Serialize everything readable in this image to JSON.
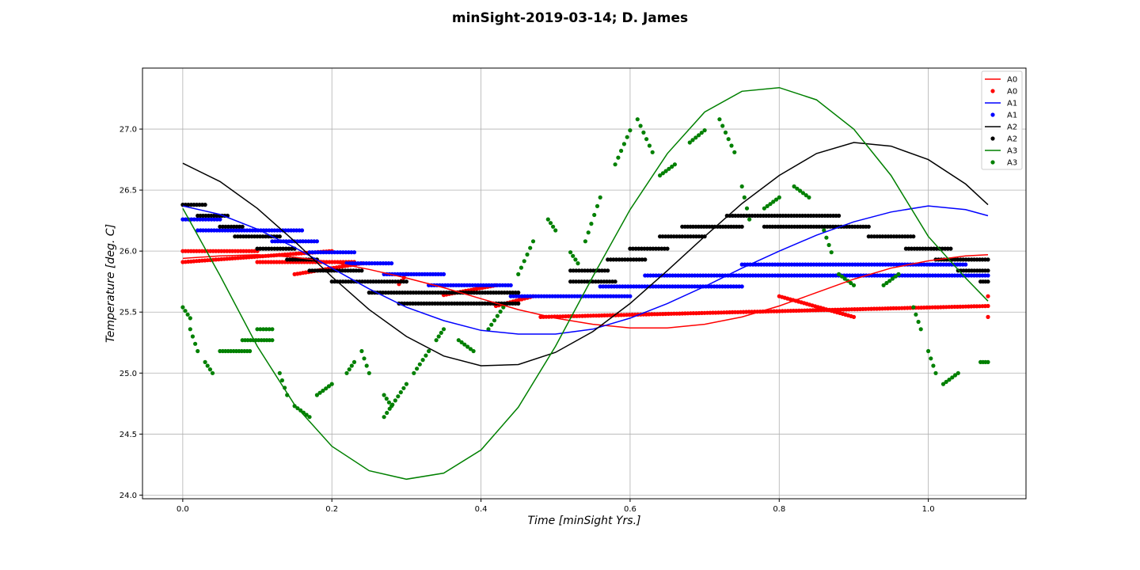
{
  "chart_data": {
    "type": "scatter",
    "title": "minSight-2019-03-14; D. James",
    "xlabel": "Time [minSight Yrs.]",
    "ylabel": "Temperature [deg. C]",
    "xlim": [
      -0.054,
      1.131
    ],
    "ylim": [
      23.97,
      27.5
    ],
    "xticks": [
      "0.0",
      "0.2",
      "0.4",
      "0.6",
      "0.8",
      "1.0"
    ],
    "xtick_values": [
      0.0,
      0.2,
      0.4,
      0.6,
      0.8,
      1.0
    ],
    "yticks": [
      "24.0",
      "24.5",
      "25.0",
      "25.5",
      "26.0",
      "26.5",
      "27.0"
    ],
    "ytick_values": [
      24.0,
      24.5,
      25.0,
      25.5,
      26.0,
      26.5,
      27.0
    ],
    "grid": true,
    "legend_position": "top-right",
    "legend_entries": [
      "A0",
      "A0",
      "A1",
      "A1",
      "A2",
      "A2",
      "A3",
      "A3"
    ],
    "series": [
      {
        "name": "A0",
        "color": "#ff0000",
        "fit": [
          [
            0.0,
            25.94
          ],
          [
            0.05,
            25.96
          ],
          [
            0.1,
            25.97
          ],
          [
            0.15,
            25.95
          ],
          [
            0.2,
            25.91
          ],
          [
            0.25,
            25.85
          ],
          [
            0.3,
            25.78
          ],
          [
            0.35,
            25.7
          ],
          [
            0.4,
            25.61
          ],
          [
            0.45,
            25.52
          ],
          [
            0.5,
            25.45
          ],
          [
            0.55,
            25.4
          ],
          [
            0.6,
            25.37
          ],
          [
            0.65,
            25.37
          ],
          [
            0.7,
            25.4
          ],
          [
            0.75,
            25.46
          ],
          [
            0.8,
            25.55
          ],
          [
            0.85,
            25.66
          ],
          [
            0.9,
            25.77
          ],
          [
            0.95,
            25.86
          ],
          [
            1.0,
            25.92
          ],
          [
            1.05,
            25.96
          ],
          [
            1.08,
            25.97
          ]
        ],
        "points": [
          [
            0.0,
            26.0
          ],
          [
            0.1,
            26.0
          ],
          [
            0.2,
            26.0
          ],
          [
            0.0,
            25.91
          ],
          [
            0.1,
            25.91
          ],
          [
            0.23,
            25.91
          ],
          [
            0.24,
            25.9
          ],
          [
            0.15,
            25.81
          ],
          [
            0.3,
            25.81
          ],
          [
            0.29,
            25.73
          ],
          [
            0.42,
            25.72
          ],
          [
            0.35,
            25.64
          ],
          [
            0.47,
            25.63
          ],
          [
            0.42,
            25.55
          ],
          [
            1.08,
            25.55
          ],
          [
            0.48,
            25.46
          ],
          [
            0.9,
            25.46
          ],
          [
            0.8,
            25.63
          ],
          [
            1.08,
            25.63
          ],
          [
            1.08,
            25.46
          ]
        ]
      },
      {
        "name": "A1",
        "color": "#0000ff",
        "fit": [
          [
            0.0,
            26.37
          ],
          [
            0.05,
            26.3
          ],
          [
            0.1,
            26.18
          ],
          [
            0.15,
            26.03
          ],
          [
            0.2,
            25.86
          ],
          [
            0.25,
            25.69
          ],
          [
            0.3,
            25.54
          ],
          [
            0.35,
            25.43
          ],
          [
            0.4,
            25.35
          ],
          [
            0.45,
            25.32
          ],
          [
            0.5,
            25.32
          ],
          [
            0.55,
            25.36
          ],
          [
            0.6,
            25.45
          ],
          [
            0.65,
            25.57
          ],
          [
            0.7,
            25.71
          ],
          [
            0.75,
            25.86
          ],
          [
            0.8,
            26.0
          ],
          [
            0.85,
            26.13
          ],
          [
            0.9,
            26.24
          ],
          [
            0.95,
            26.32
          ],
          [
            1.0,
            26.37
          ],
          [
            1.05,
            26.34
          ],
          [
            1.08,
            26.29
          ]
        ],
        "points": [
          [
            0.0,
            26.26
          ],
          [
            0.05,
            26.26
          ],
          [
            0.02,
            26.17
          ],
          [
            0.16,
            26.17
          ],
          [
            0.12,
            26.08
          ],
          [
            0.18,
            26.08
          ],
          [
            0.17,
            25.99
          ],
          [
            0.23,
            25.99
          ],
          [
            0.22,
            25.9
          ],
          [
            0.28,
            25.9
          ],
          [
            0.27,
            25.81
          ],
          [
            0.35,
            25.81
          ],
          [
            0.33,
            25.72
          ],
          [
            0.44,
            25.72
          ],
          [
            0.44,
            25.63
          ],
          [
            0.6,
            25.63
          ],
          [
            0.56,
            25.71
          ],
          [
            0.75,
            25.71
          ],
          [
            0.62,
            25.8
          ],
          [
            1.08,
            25.8
          ],
          [
            0.75,
            25.89
          ],
          [
            1.05,
            25.89
          ]
        ]
      },
      {
        "name": "A2",
        "color": "#000000",
        "fit": [
          [
            0.0,
            26.72
          ],
          [
            0.05,
            26.57
          ],
          [
            0.1,
            26.35
          ],
          [
            0.15,
            26.08
          ],
          [
            0.2,
            25.79
          ],
          [
            0.25,
            25.52
          ],
          [
            0.3,
            25.3
          ],
          [
            0.35,
            25.14
          ],
          [
            0.4,
            25.06
          ],
          [
            0.45,
            25.07
          ],
          [
            0.5,
            25.17
          ],
          [
            0.55,
            25.34
          ],
          [
            0.6,
            25.57
          ],
          [
            0.65,
            25.84
          ],
          [
            0.7,
            26.12
          ],
          [
            0.75,
            26.39
          ],
          [
            0.8,
            26.62
          ],
          [
            0.85,
            26.8
          ],
          [
            0.9,
            26.89
          ],
          [
            0.95,
            26.86
          ],
          [
            1.0,
            26.75
          ],
          [
            1.05,
            26.55
          ],
          [
            1.08,
            26.38
          ]
        ],
        "points": [
          [
            0.0,
            26.38
          ],
          [
            0.03,
            26.38
          ],
          [
            0.02,
            26.29
          ],
          [
            0.06,
            26.29
          ],
          [
            0.05,
            26.2
          ],
          [
            0.08,
            26.2
          ],
          [
            0.07,
            26.12
          ],
          [
            0.13,
            26.12
          ],
          [
            0.1,
            26.02
          ],
          [
            0.15,
            26.02
          ],
          [
            0.14,
            25.93
          ],
          [
            0.18,
            25.93
          ],
          [
            0.17,
            25.84
          ],
          [
            0.24,
            25.84
          ],
          [
            0.2,
            25.75
          ],
          [
            0.3,
            25.75
          ],
          [
            0.25,
            25.66
          ],
          [
            0.45,
            25.66
          ],
          [
            0.29,
            25.57
          ],
          [
            0.45,
            25.57
          ],
          [
            0.52,
            25.75
          ],
          [
            0.58,
            25.75
          ],
          [
            0.52,
            25.84
          ],
          [
            0.57,
            25.84
          ],
          [
            0.57,
            25.93
          ],
          [
            0.62,
            25.93
          ],
          [
            0.6,
            26.02
          ],
          [
            0.65,
            26.02
          ],
          [
            0.64,
            26.12
          ],
          [
            0.7,
            26.12
          ],
          [
            0.67,
            26.2
          ],
          [
            0.75,
            26.2
          ],
          [
            0.73,
            26.29
          ],
          [
            0.88,
            26.29
          ],
          [
            0.78,
            26.2
          ],
          [
            0.92,
            26.2
          ],
          [
            0.92,
            26.12
          ],
          [
            0.98,
            26.12
          ],
          [
            0.97,
            26.02
          ],
          [
            1.03,
            26.02
          ],
          [
            1.01,
            25.93
          ],
          [
            1.08,
            25.93
          ],
          [
            1.04,
            25.84
          ],
          [
            1.08,
            25.84
          ],
          [
            1.07,
            25.75
          ],
          [
            1.08,
            25.75
          ]
        ]
      },
      {
        "name": "A3",
        "color": "#008000",
        "fit": [
          [
            0.0,
            26.35
          ],
          [
            0.05,
            25.8
          ],
          [
            0.1,
            25.22
          ],
          [
            0.15,
            24.74
          ],
          [
            0.2,
            24.4
          ],
          [
            0.25,
            24.2
          ],
          [
            0.3,
            24.13
          ],
          [
            0.35,
            24.18
          ],
          [
            0.4,
            24.37
          ],
          [
            0.45,
            24.72
          ],
          [
            0.5,
            25.22
          ],
          [
            0.55,
            25.79
          ],
          [
            0.6,
            26.34
          ],
          [
            0.65,
            26.8
          ],
          [
            0.7,
            27.14
          ],
          [
            0.75,
            27.31
          ],
          [
            0.8,
            27.34
          ],
          [
            0.85,
            27.24
          ],
          [
            0.9,
            27.0
          ],
          [
            0.95,
            26.62
          ],
          [
            1.0,
            26.12
          ],
          [
            1.05,
            25.78
          ],
          [
            1.08,
            25.59
          ]
        ],
        "points": [
          [
            0.0,
            25.54
          ],
          [
            0.01,
            25.45
          ],
          [
            0.01,
            25.36
          ],
          [
            0.02,
            25.18
          ],
          [
            0.03,
            25.09
          ],
          [
            0.04,
            25.0
          ],
          [
            0.05,
            25.18
          ],
          [
            0.09,
            25.18
          ],
          [
            0.08,
            25.27
          ],
          [
            0.12,
            25.27
          ],
          [
            0.1,
            25.36
          ],
          [
            0.12,
            25.36
          ],
          [
            0.13,
            25.0
          ],
          [
            0.14,
            24.82
          ],
          [
            0.15,
            24.73
          ],
          [
            0.17,
            24.64
          ],
          [
            0.18,
            24.82
          ],
          [
            0.2,
            24.91
          ],
          [
            0.22,
            25.0
          ],
          [
            0.23,
            25.09
          ],
          [
            0.24,
            25.18
          ],
          [
            0.25,
            25.0
          ],
          [
            0.27,
            24.82
          ],
          [
            0.28,
            24.73
          ],
          [
            0.27,
            24.64
          ],
          [
            0.3,
            24.91
          ],
          [
            0.31,
            25.0
          ],
          [
            0.33,
            25.18
          ],
          [
            0.34,
            25.27
          ],
          [
            0.35,
            25.36
          ],
          [
            0.37,
            25.27
          ],
          [
            0.39,
            25.18
          ],
          [
            0.41,
            25.36
          ],
          [
            0.43,
            25.54
          ],
          [
            0.45,
            25.81
          ],
          [
            0.47,
            26.08
          ],
          [
            0.49,
            26.26
          ],
          [
            0.5,
            26.17
          ],
          [
            0.52,
            25.99
          ],
          [
            0.53,
            25.9
          ],
          [
            0.54,
            26.08
          ],
          [
            0.56,
            26.44
          ],
          [
            0.58,
            26.71
          ],
          [
            0.6,
            26.99
          ],
          [
            0.61,
            27.08
          ],
          [
            0.63,
            26.81
          ],
          [
            0.64,
            26.62
          ],
          [
            0.66,
            26.71
          ],
          [
            0.68,
            26.89
          ],
          [
            0.7,
            26.99
          ],
          [
            0.72,
            27.08
          ],
          [
            0.74,
            26.81
          ],
          [
            0.75,
            26.53
          ],
          [
            0.76,
            26.26
          ],
          [
            0.78,
            26.35
          ],
          [
            0.8,
            26.44
          ],
          [
            0.82,
            26.53
          ],
          [
            0.84,
            26.44
          ],
          [
            0.86,
            26.17
          ],
          [
            0.87,
            25.99
          ],
          [
            0.88,
            25.81
          ],
          [
            0.9,
            25.72
          ],
          [
            0.94,
            25.72
          ],
          [
            0.96,
            25.81
          ],
          [
            0.98,
            25.54
          ],
          [
            0.99,
            25.36
          ],
          [
            1.0,
            25.18
          ],
          [
            1.01,
            25.0
          ],
          [
            1.02,
            24.91
          ],
          [
            1.04,
            25.0
          ],
          [
            1.07,
            25.09
          ],
          [
            1.08,
            25.09
          ]
        ]
      }
    ]
  }
}
